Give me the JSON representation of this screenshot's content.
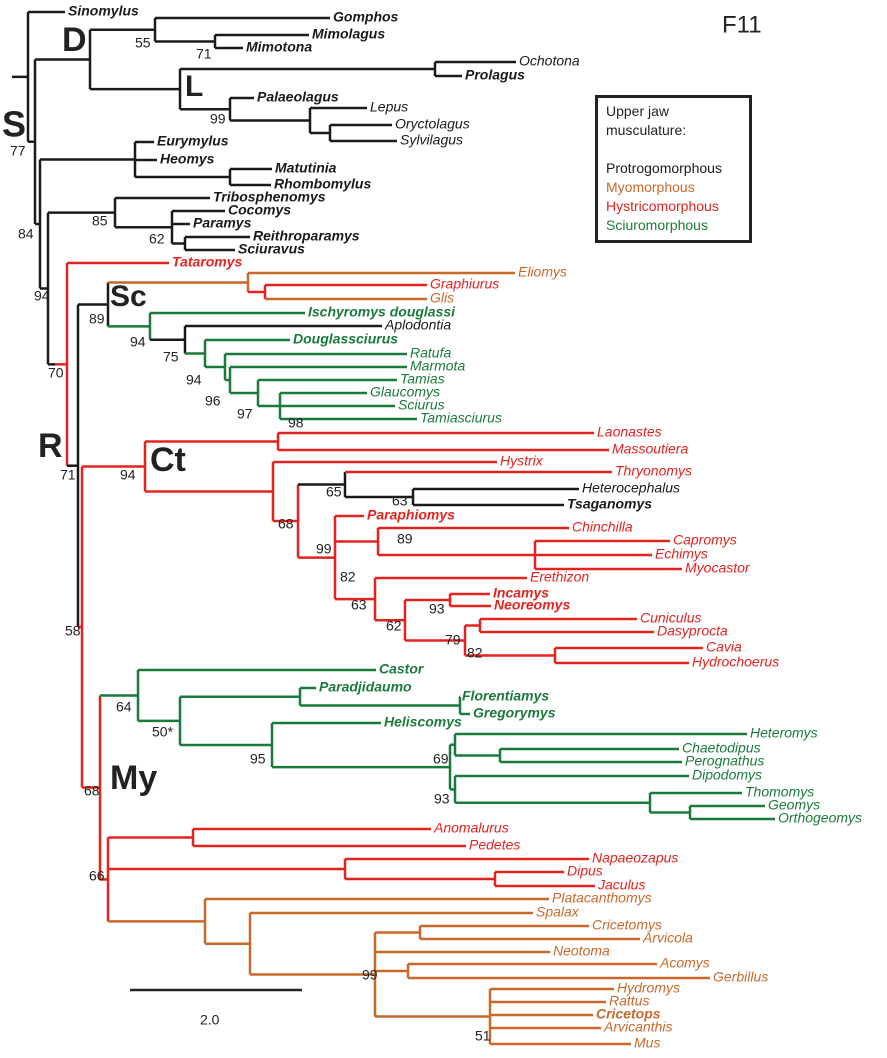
{
  "title": "F11",
  "taxa": [
    "Sinomylus",
    "Gomphos",
    "Mimolagus",
    "Mimotona",
    "Ochotona",
    "Prolagus",
    "Palaeolagus",
    "Lepus",
    "Oryctolagus",
    "Sylvilagus",
    "Eurymylus",
    "Heomys",
    "Matutinia",
    "Rhombomylus",
    "Tribosphenomys",
    "Cocomys",
    "Paramys",
    "Reithroparamys",
    "Sciuravus",
    "Tataromys",
    "Eliomys",
    "Graphiurus",
    "Glis",
    "Ischyromys douglassi",
    "Aplodontia",
    "Douglassciurus",
    "Ratufa",
    "Marmota",
    "Tamias",
    "Glaucomys",
    "Sciurus",
    "Tamiasciurus",
    "Laonastes",
    "Massoutiera",
    "Hystrix",
    "Thryonomys",
    "Heterocephalus",
    "Tsaganomys",
    "Paraphiomys",
    "Chinchilla",
    "Capromys",
    "Echimys",
    "Myocastor",
    "Erethizon",
    "Incamys",
    "Neoreomys",
    "Cuniculus",
    "Dasyprocta",
    "Cavia",
    "Hydrochoerus",
    "Castor",
    "Paradjidaumo",
    "Florentiamys",
    "Gregorymys",
    "Heliscomys",
    "Heteromys",
    "Chaetodipus",
    "Perognathus",
    "Dipodomys",
    "Thomomys",
    "Geomys",
    "Orthogeomys",
    "Anomalurus",
    "Pedetes",
    "Napaeozapus",
    "Dipus",
    "Jaculus",
    "Platacanthomys",
    "Spalax",
    "Cricetomys",
    "Arvicola",
    "Neotoma",
    "Acomys",
    "Gerbillus",
    "Hydromys",
    "Rattus",
    "Cricetops",
    "Arvicanthis",
    "Mus"
  ],
  "supports": [
    "55",
    "71",
    "99",
    "77",
    "85",
    "62",
    "84",
    "94",
    "89",
    "94",
    "75",
    "94",
    "96",
    "97",
    "98",
    "70",
    "71",
    "94",
    "65",
    "63",
    "68",
    "99",
    "89",
    "82",
    "63",
    "62",
    "93",
    "79",
    "82",
    "58",
    "64",
    "50*",
    "95",
    "69",
    "93",
    "68",
    "66",
    "99",
    "51"
  ],
  "clades": [
    "S",
    "D",
    "L",
    "Sc",
    "R",
    "Ct",
    "My"
  ],
  "legend": {
    "title": "Upper jaw musculature:",
    "items": [
      "Protrogomorphous",
      "Myomorphous",
      "Hystricomorphous",
      "Sciuromorphous"
    ]
  },
  "scale_label": "2.0"
}
